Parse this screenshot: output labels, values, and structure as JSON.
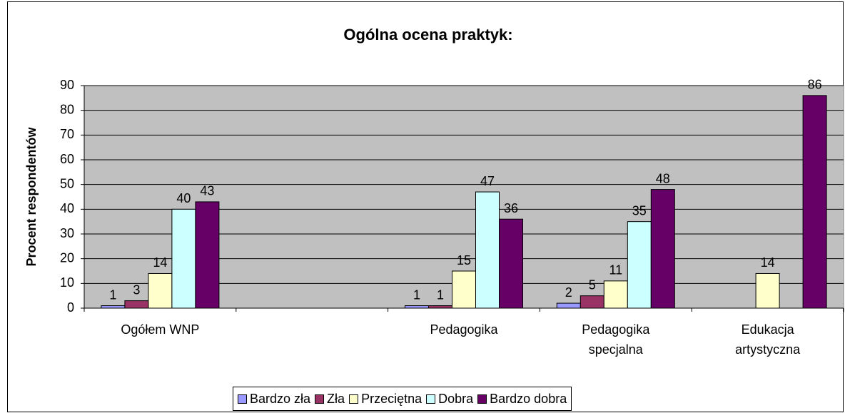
{
  "chart_data": {
    "type": "bar",
    "title": "Ogólna ocena praktyk:",
    "y_label": "Procent respondentów",
    "categories": [
      "Ogółem WNP",
      null,
      "Pedagogika",
      "Pedagogika specjalna",
      "Edukacja artystyczna"
    ],
    "series": [
      {
        "name": "Bardzo zła",
        "color": "#9999ff",
        "values": [
          1,
          null,
          1,
          2,
          null
        ]
      },
      {
        "name": "Zła",
        "color": "#993366",
        "values": [
          3,
          null,
          1,
          5,
          null
        ]
      },
      {
        "name": "Przeciętna",
        "color": "#ffffcc",
        "values": [
          14,
          null,
          15,
          11,
          14
        ]
      },
      {
        "name": "Dobra",
        "color": "#ccffff",
        "values": [
          40,
          null,
          47,
          35,
          null
        ]
      },
      {
        "name": "Bardzo dobra",
        "color": "#660066",
        "values": [
          43,
          null,
          36,
          48,
          86
        ]
      }
    ],
    "ylim": [
      0,
      90
    ],
    "yticks": [
      0,
      10,
      20,
      30,
      40,
      50,
      60,
      70,
      80,
      90
    ],
    "grid": true,
    "legend": "bottom",
    "plot_background": "#c0c0c0"
  }
}
